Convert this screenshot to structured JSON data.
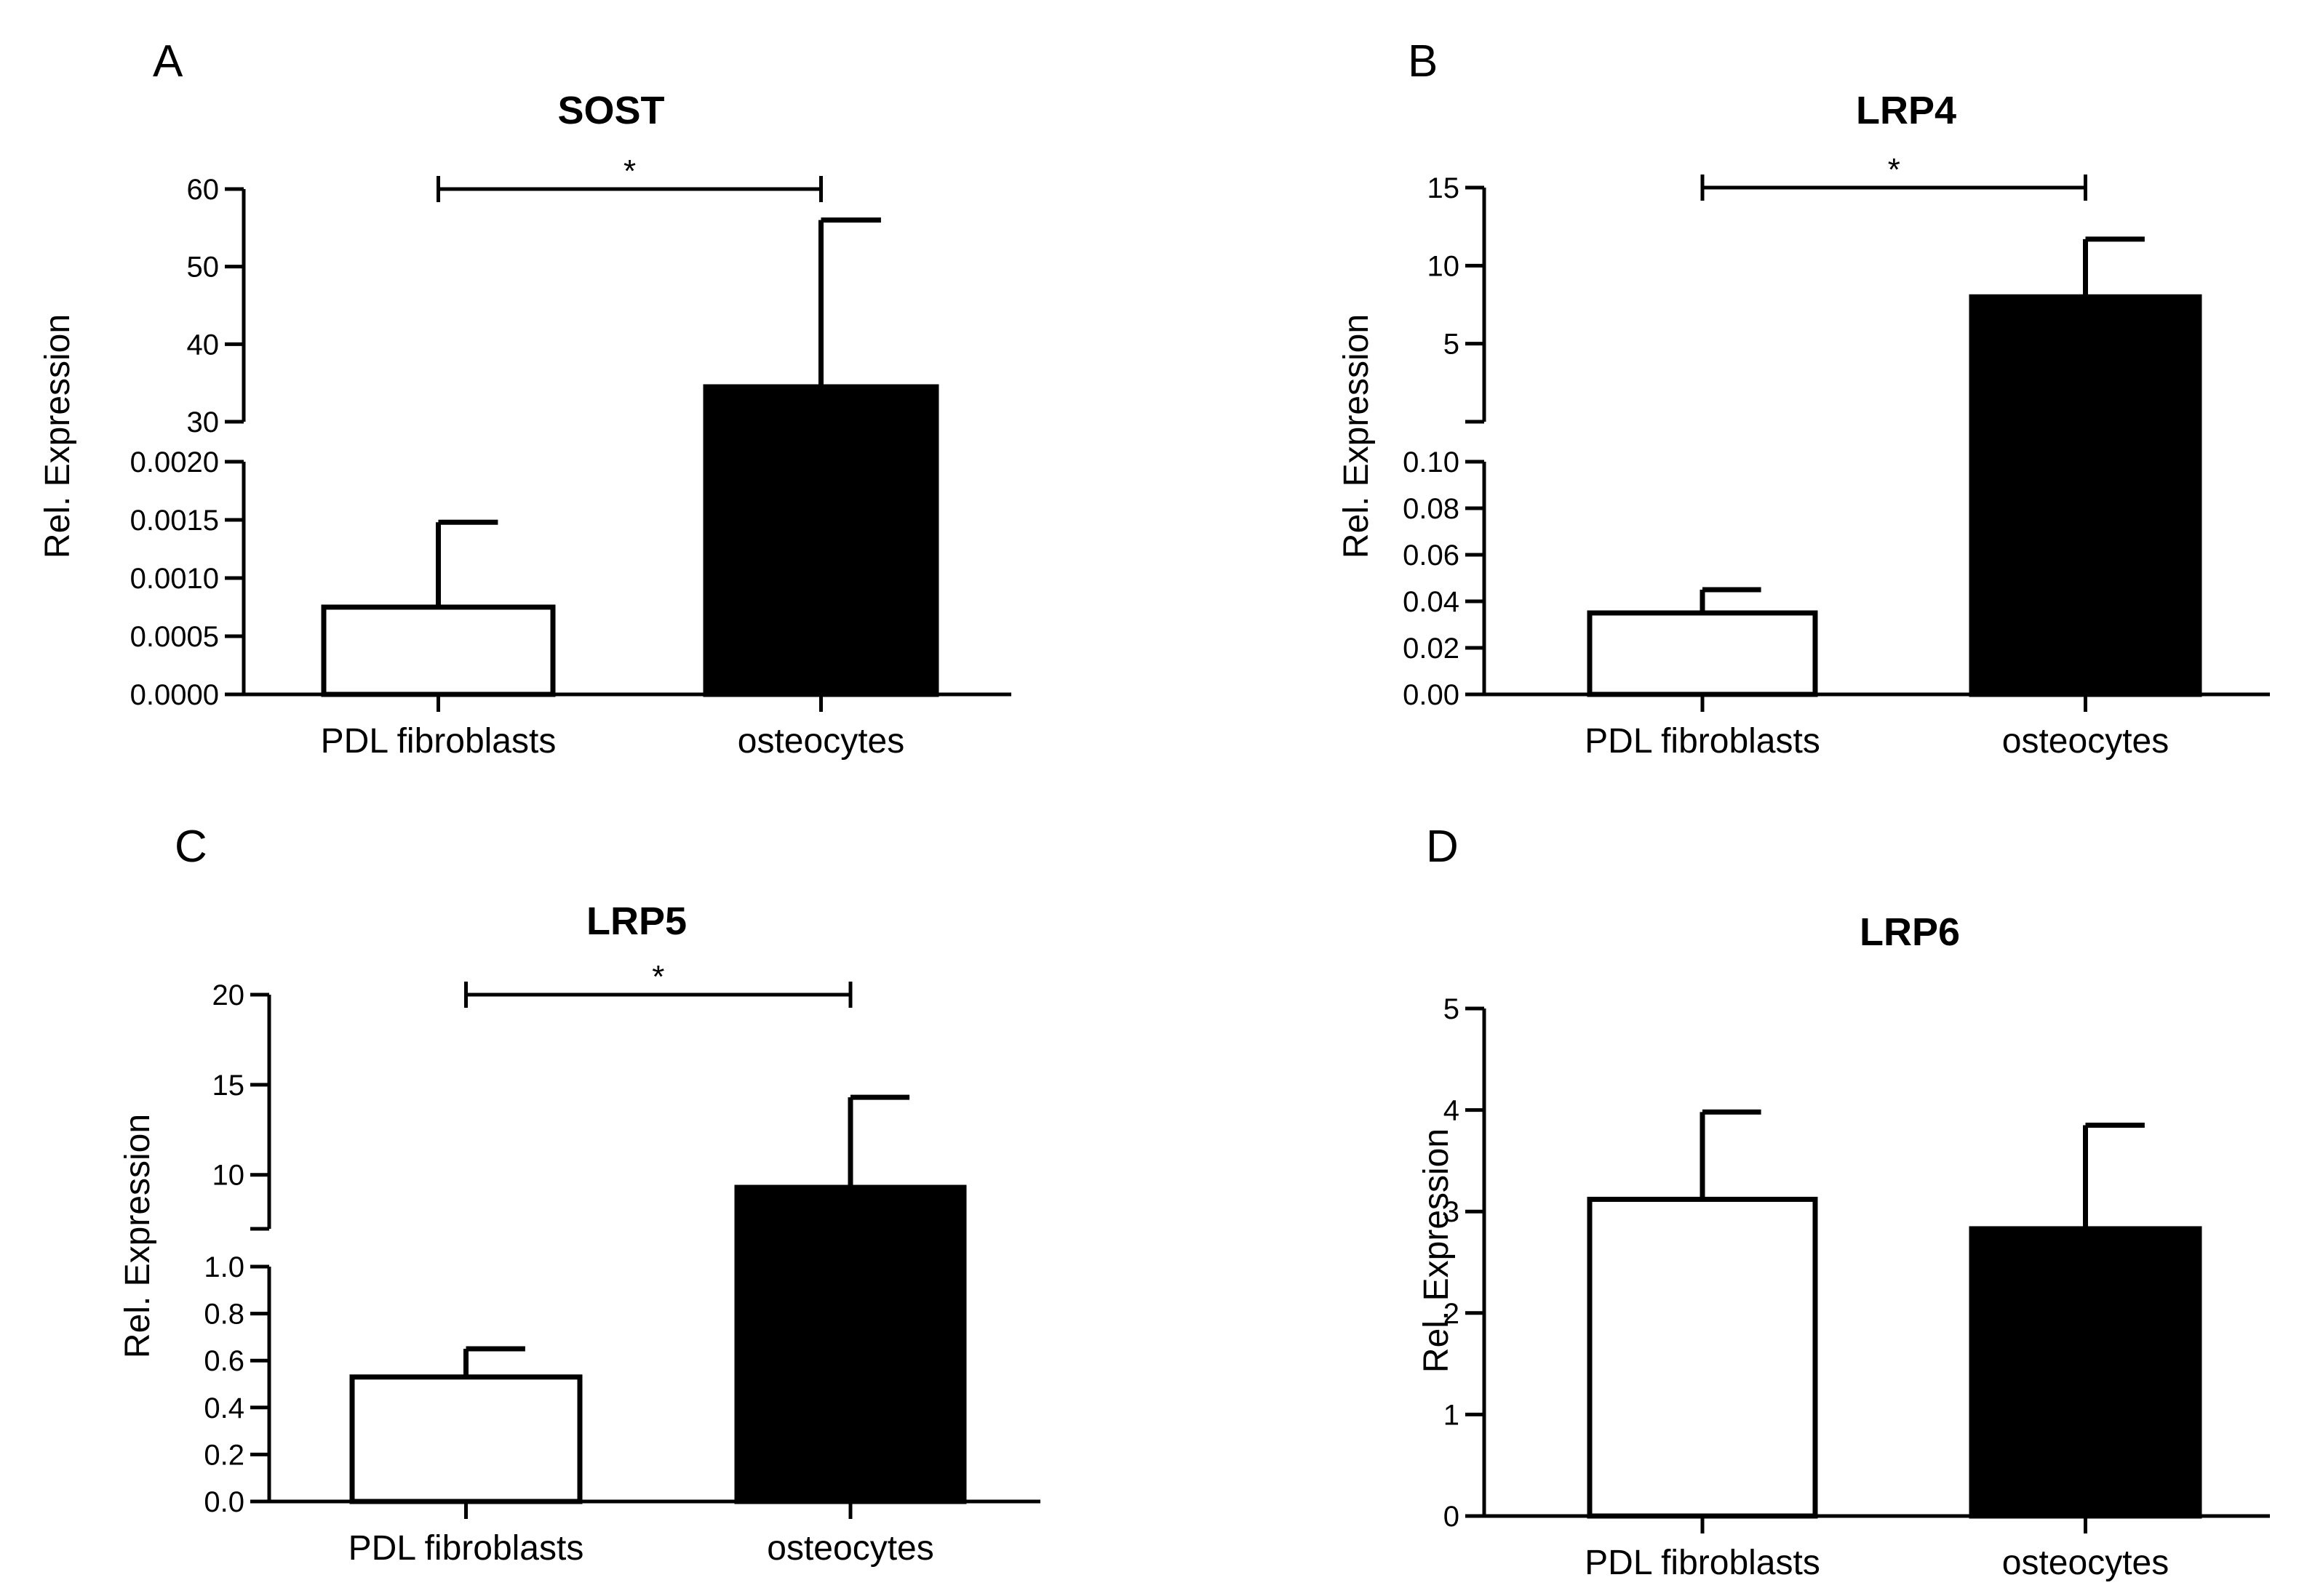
{
  "chart_data": [
    {
      "panel": "A",
      "type": "bar",
      "title": "SOST",
      "ylabel": "Rel. Expression",
      "categories": [
        "PDL fibroblasts",
        "osteocytes"
      ],
      "values": [
        0.00075,
        34.5
      ],
      "errors": [
        0.00148,
        56
      ],
      "fills": [
        "#ffffff",
        "#000000"
      ],
      "axis_break": true,
      "lower_ylim": [
        0,
        0.002
      ],
      "lower_ticks": [
        "0.0000",
        "0.0005",
        "0.0010",
        "0.0015",
        "0.0020"
      ],
      "upper_ylim": [
        30,
        60
      ],
      "upper_ticks": [
        "30",
        "40",
        "50",
        "60"
      ],
      "significance": "*"
    },
    {
      "panel": "B",
      "type": "bar",
      "title": "LRP4",
      "ylabel": "Rel. Expression",
      "categories": [
        "PDL fibroblasts",
        "osteocytes"
      ],
      "values": [
        0.035,
        8
      ],
      "errors": [
        0.045,
        11.7
      ],
      "fills": [
        "#ffffff",
        "#000000"
      ],
      "axis_break": true,
      "lower_ylim": [
        0,
        0.1
      ],
      "lower_ticks": [
        "0.00",
        "0.02",
        "0.04",
        "0.06",
        "0.08",
        "0.10"
      ],
      "upper_ylim": [
        0,
        15
      ],
      "upper_ticks": [
        "5",
        "10",
        "15"
      ],
      "significance": "*"
    },
    {
      "panel": "C",
      "type": "bar",
      "title": "LRP5",
      "ylabel": "Rel. Expression",
      "categories": [
        "PDL fibroblasts",
        "osteocytes"
      ],
      "values": [
        0.53,
        9.3
      ],
      "errors": [
        0.65,
        14.3
      ],
      "fills": [
        "#ffffff",
        "#000000"
      ],
      "axis_break": true,
      "lower_ylim": [
        0,
        1
      ],
      "lower_ticks": [
        "0.0",
        "0.2",
        "0.4",
        "0.6",
        "0.8",
        "1.0"
      ],
      "upper_ylim": [
        7,
        20
      ],
      "upper_ticks": [
        "10",
        "15",
        "20"
      ],
      "significance": "*"
    },
    {
      "panel": "D",
      "type": "bar",
      "title": "LRP6",
      "ylabel": "Rel. Expression",
      "categories": [
        "PDL fibroblasts",
        "osteocytes"
      ],
      "values": [
        3.12,
        2.83
      ],
      "errors": [
        3.98,
        3.85
      ],
      "fills": [
        "#ffffff",
        "#000000"
      ],
      "axis_break": false,
      "ylim": [
        0,
        5
      ],
      "ticks": [
        "0",
        "1",
        "2",
        "3",
        "4",
        "5"
      ],
      "significance": ""
    }
  ]
}
